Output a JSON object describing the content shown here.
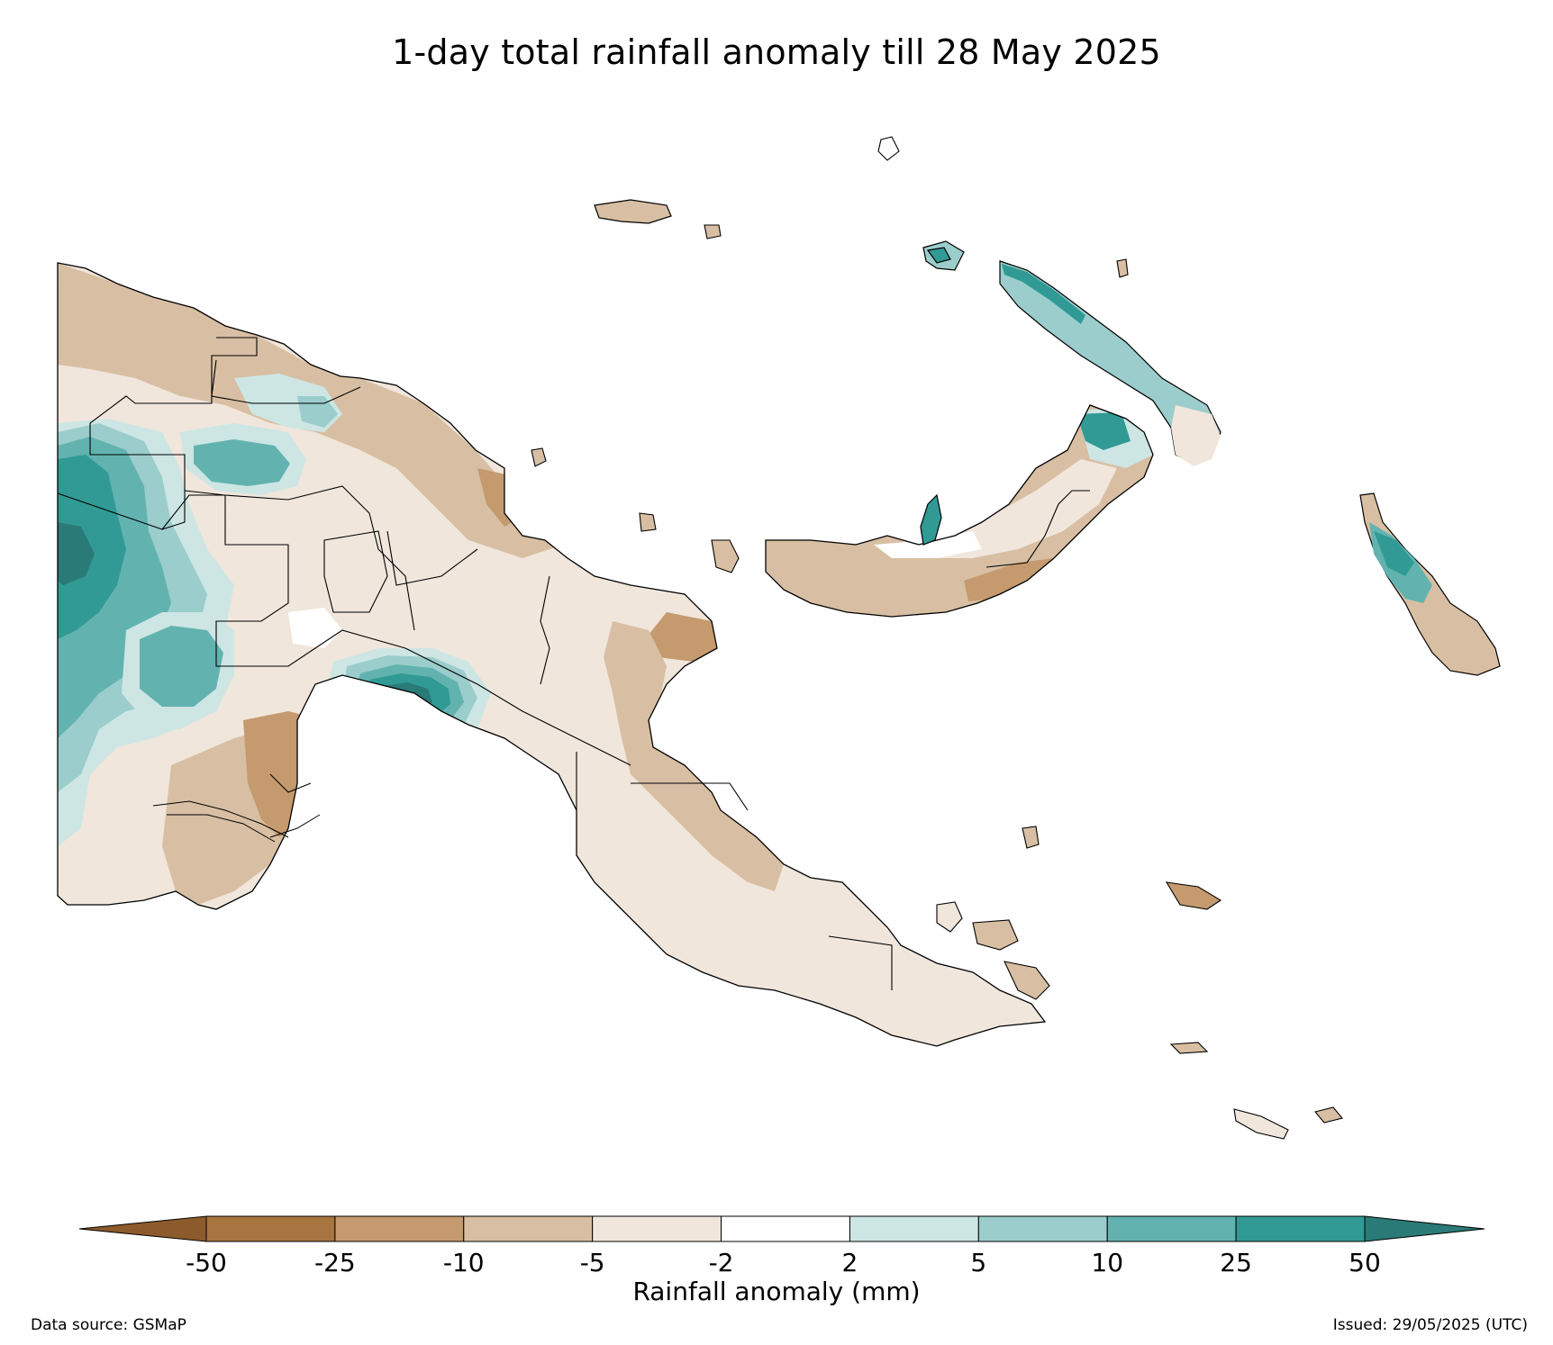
{
  "title": "1-day total rainfall anomaly till 28 May 2025",
  "colorbar": {
    "label": "Rainfall anomaly (mm)",
    "ticks": [
      "-50",
      "-25",
      "-10",
      "-5",
      "-2",
      "2",
      "5",
      "10",
      "25",
      "50"
    ],
    "colors": [
      "#8c5a2b",
      "#a8743f",
      "#c49a6e",
      "#d8bfa3",
      "#f0e6dc",
      "#ffffff",
      "#cde6e4",
      "#9acdcb",
      "#62b3b0",
      "#319a95",
      "#2a7a77"
    ],
    "extend": "both"
  },
  "footer": {
    "data_source": "Data source: GSMaP",
    "issued": "Issued: 29/05/2025 (UTC)"
  },
  "palette": {
    "c_n50": "#8c5a2b",
    "c_n25": "#a8743f",
    "c_n10": "#c49a6e",
    "c_n5": "#d8bfa3",
    "c_n2": "#f0e6dc",
    "c_0": "#ffffff",
    "c_p2": "#cde6e4",
    "c_p5": "#9acdcb",
    "c_p10": "#62b3b0",
    "c_p25": "#319a95",
    "c_p50": "#2a7a77"
  }
}
